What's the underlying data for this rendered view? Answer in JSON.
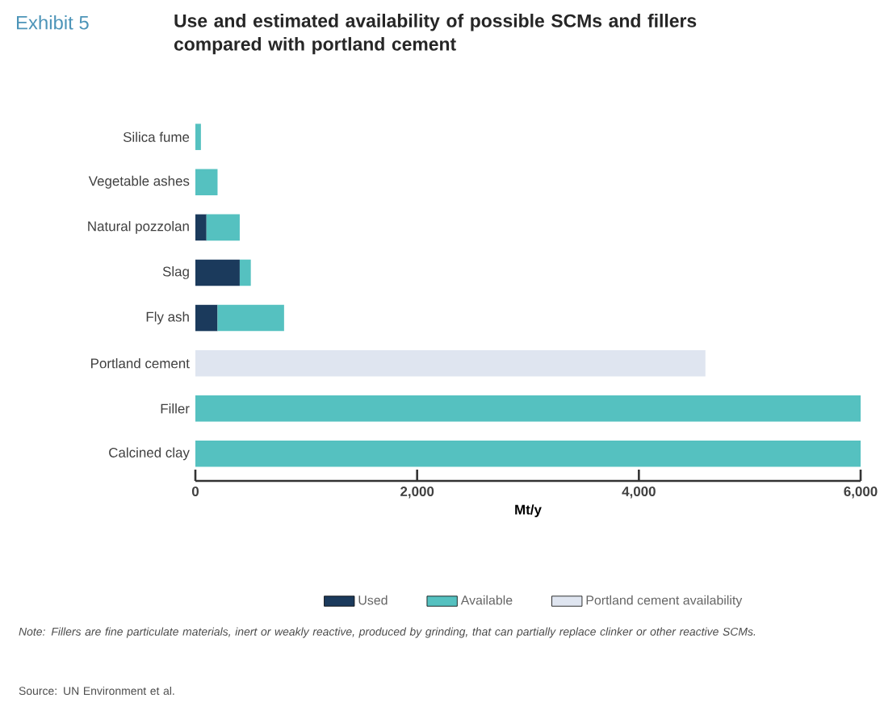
{
  "chart_data": {
    "type": "bar",
    "orientation": "horizontal",
    "stacked": true,
    "subtitle": "Exhibit 5",
    "title": "Use and estimated availability of possible SCMs and fillers compared with portland cement",
    "xlabel": "Mt/y",
    "categories": [
      "Silica fume",
      "Vegetable ashes",
      "Natural pozzolan",
      "Slag",
      "Fly ash",
      "Portland cement",
      "Filler",
      "Calcined clay"
    ],
    "series": [
      {
        "name": "Used",
        "color": "#1b3a5c",
        "values": [
          null,
          null,
          100,
          400,
          200,
          null,
          null,
          null
        ]
      },
      {
        "name": "Available",
        "color": "#55c1c0",
        "values": [
          50,
          200,
          300,
          100,
          600,
          null,
          6000,
          6000
        ]
      },
      {
        "name": "Portland cement availability",
        "color": "#dfe5f0",
        "values": [
          null,
          null,
          null,
          null,
          null,
          4600,
          null,
          null
        ]
      }
    ],
    "xlim": [
      0,
      6000
    ],
    "xticks": [
      0,
      {
        "value": 2000,
        "label": "2,000"
      },
      {
        "value": 4000,
        "label": "4,000"
      },
      {
        "value": 6000,
        "label": "6,000"
      }
    ],
    "legend": "bottom",
    "annotations": [
      "*Note: Fillers are fine particulate materials, inert or weakly reactive, produced by grinding, that can partially replace clinker or other reactive SCMs.*",
      "Source: UN Environment et al."
    ]
  }
}
